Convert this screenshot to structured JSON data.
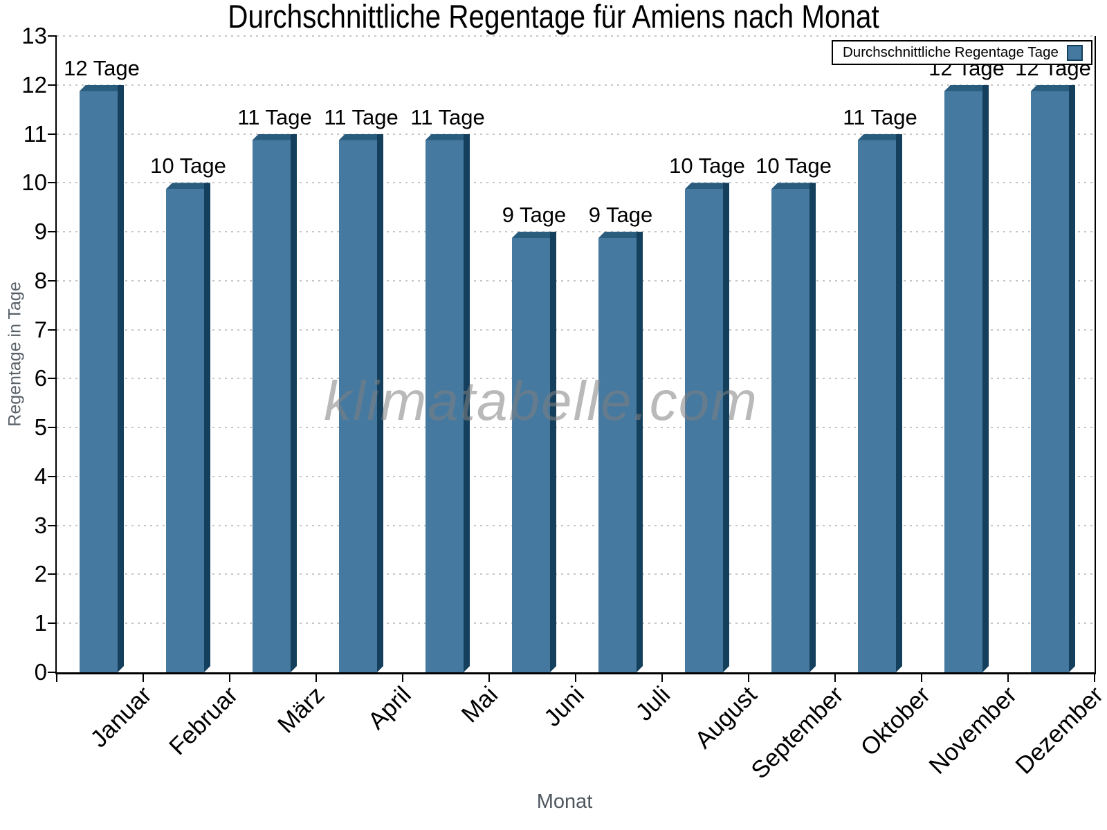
{
  "title": "Durchschnittliche Regentage für Amiens nach Monat",
  "legend": {
    "label": "Durchschnittliche Regentage Tage"
  },
  "watermark": "klimatabelle.com",
  "colors": {
    "bar_face": "#45799f",
    "bar_top": "#2a5c7e",
    "bar_side": "#15405d",
    "axis": "#000000",
    "grid": "#c6c6c6",
    "muted_text": "#596169",
    "watermark": "#808080"
  },
  "chart_data": {
    "type": "bar",
    "categories": [
      "Januar",
      "Februar",
      "März",
      "April",
      "Mai",
      "Juni",
      "Juli",
      "August",
      "September",
      "Oktober",
      "November",
      "Dezember"
    ],
    "values": [
      12,
      10,
      11,
      11,
      11,
      9,
      9,
      10,
      10,
      11,
      12,
      12
    ],
    "value_labels": [
      "12 Tage",
      "10 Tage",
      "11 Tage",
      "11 Tage",
      "11 Tage",
      "9 Tage",
      "9 Tage",
      "10 Tage",
      "10 Tage",
      "11 Tage",
      "12 Tage",
      "12 Tage"
    ],
    "series_name": "Durchschnittliche Regentage Tage",
    "title": "Durchschnittliche Regentage für Amiens nach Monat",
    "xlabel": "Monat",
    "ylabel": "Regentage in Tage",
    "ylim": [
      0,
      13
    ],
    "ytick_step": 1,
    "grid": "horizontal-dotted",
    "legend_position": "top-right"
  }
}
